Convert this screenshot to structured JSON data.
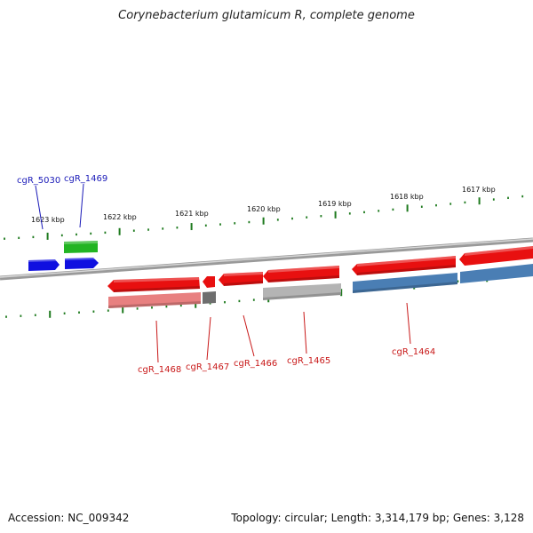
{
  "title": "Corynebacterium glutamicum R, complete genome",
  "footer": {
    "accession": "Accession: NC_009342",
    "topology": "Topology: circular; Length: 3,314,179 bp; Genes: 3,128"
  },
  "ruler_labels": [
    "1623 kbp",
    "1622 kbp",
    "1621 kbp",
    "1620 kbp",
    "1619 kbp",
    "1618 kbp",
    "1617 kbp"
  ],
  "gene_labels": [
    {
      "text": "cgR_5030",
      "strand": "forward"
    },
    {
      "text": "cgR_1469",
      "strand": "forward"
    },
    {
      "text": "cgR_1468",
      "strand": "reverse"
    },
    {
      "text": "cgR_1467",
      "strand": "reverse"
    },
    {
      "text": "cgR_1466",
      "strand": "reverse"
    },
    {
      "text": "cgR_1465",
      "strand": "reverse"
    },
    {
      "text": "cgR_1464",
      "strand": "reverse"
    }
  ],
  "colors": {
    "backbone": "#8a8a8a",
    "forward_label": "#1a1ab8",
    "reverse_label": "#c81818",
    "tick": "#1e7a1e",
    "cds_red": "#e81010",
    "cds_blue": "#1010e0",
    "cds_green": "#22b422",
    "feat_pink": "#e88080",
    "feat_gray": "#b4b4b4",
    "feat_darkgray": "#6e6e6e",
    "feat_steel": "#4a7eb4"
  }
}
